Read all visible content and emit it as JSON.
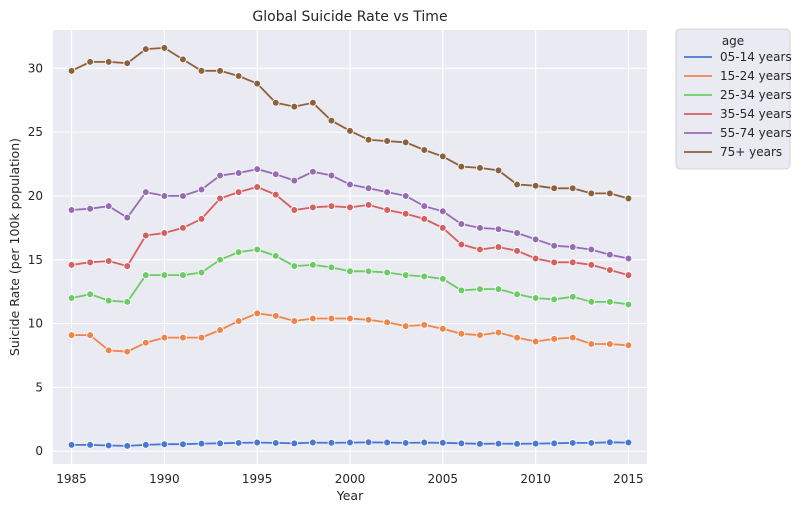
{
  "chart_data": {
    "type": "line",
    "title": "Global Suicide Rate vs Time",
    "xlabel": "Year",
    "ylabel": "Suicide Rate (per 100k population)",
    "xlim": [
      1984,
      2016
    ],
    "ylim": [
      -1,
      33
    ],
    "x_ticks": [
      1985,
      1990,
      1995,
      2000,
      2005,
      2010,
      2015
    ],
    "y_ticks": [
      0,
      5,
      10,
      15,
      20,
      25,
      30
    ],
    "grid": true,
    "marker": "circle",
    "legend": {
      "title": "age",
      "placement": "outside-top-right"
    },
    "x": [
      1985,
      1986,
      1987,
      1988,
      1989,
      1990,
      1991,
      1992,
      1993,
      1994,
      1995,
      1996,
      1997,
      1998,
      1999,
      2000,
      2001,
      2002,
      2003,
      2004,
      2005,
      2006,
      2007,
      2008,
      2009,
      2010,
      2011,
      2012,
      2013,
      2014,
      2015
    ],
    "series": [
      {
        "name": "05-14 years",
        "color": "#4878d0",
        "values": [
          0.5,
          0.5,
          0.45,
          0.42,
          0.5,
          0.55,
          0.55,
          0.6,
          0.62,
          0.65,
          0.68,
          0.65,
          0.62,
          0.68,
          0.66,
          0.68,
          0.7,
          0.68,
          0.65,
          0.68,
          0.66,
          0.62,
          0.58,
          0.6,
          0.58,
          0.6,
          0.62,
          0.65,
          0.65,
          0.7,
          0.68
        ]
      },
      {
        "name": "15-24 years",
        "color": "#ee854a",
        "values": [
          9.1,
          9.1,
          7.9,
          7.8,
          8.5,
          8.9,
          8.9,
          8.9,
          9.5,
          10.2,
          10.8,
          10.6,
          10.2,
          10.4,
          10.4,
          10.4,
          10.3,
          10.1,
          9.8,
          9.9,
          9.6,
          9.2,
          9.1,
          9.3,
          8.9,
          8.6,
          8.8,
          8.9,
          8.4,
          8.4,
          8.3
        ]
      },
      {
        "name": "25-34 years",
        "color": "#6acc64",
        "values": [
          12.0,
          12.3,
          11.8,
          11.7,
          13.8,
          13.8,
          13.8,
          14.0,
          15.0,
          15.6,
          15.8,
          15.3,
          14.5,
          14.6,
          14.4,
          14.1,
          14.1,
          14.0,
          13.8,
          13.7,
          13.5,
          12.6,
          12.7,
          12.7,
          12.3,
          12.0,
          11.9,
          12.1,
          11.7,
          11.7,
          11.5
        ]
      },
      {
        "name": "35-54 years",
        "color": "#d65f5f",
        "values": [
          14.6,
          14.8,
          14.9,
          14.5,
          16.9,
          17.1,
          17.5,
          18.2,
          19.8,
          20.3,
          20.7,
          20.1,
          18.9,
          19.1,
          19.2,
          19.1,
          19.3,
          18.9,
          18.6,
          18.2,
          17.5,
          16.2,
          15.8,
          16.0,
          15.7,
          15.1,
          14.8,
          14.8,
          14.6,
          14.2,
          13.8
        ]
      },
      {
        "name": "55-74 years",
        "color": "#956cb4",
        "values": [
          18.9,
          19.0,
          19.2,
          18.3,
          20.3,
          20.0,
          20.0,
          20.5,
          21.6,
          21.8,
          22.1,
          21.7,
          21.2,
          21.9,
          21.6,
          20.9,
          20.6,
          20.3,
          20.0,
          19.2,
          18.8,
          17.8,
          17.5,
          17.4,
          17.1,
          16.6,
          16.1,
          16.0,
          15.8,
          15.4,
          15.1
        ]
      },
      {
        "name": "75+ years",
        "color": "#8c613c",
        "values": [
          29.8,
          30.5,
          30.5,
          30.4,
          31.5,
          31.6,
          30.7,
          29.8,
          29.8,
          29.4,
          28.8,
          27.3,
          27.0,
          27.3,
          25.9,
          25.1,
          24.4,
          24.3,
          24.2,
          23.6,
          23.1,
          22.3,
          22.2,
          22.0,
          20.9,
          20.8,
          20.6,
          20.6,
          20.2,
          20.2,
          19.8
        ]
      }
    ]
  }
}
